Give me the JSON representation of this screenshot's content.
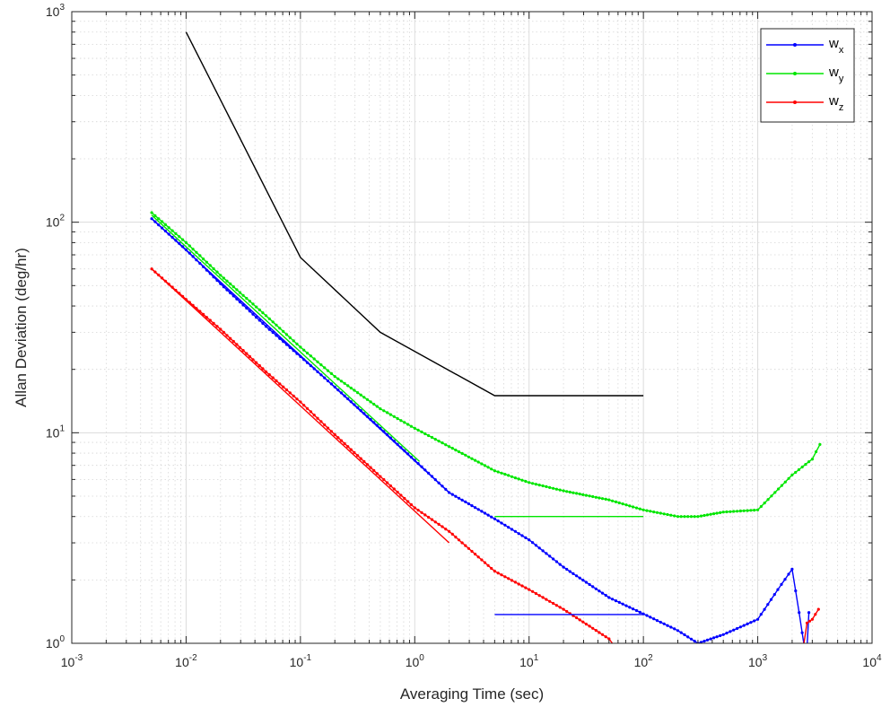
{
  "chart_data": {
    "type": "line",
    "title": "",
    "xlabel": "Averaging Time (sec)",
    "ylabel": "Allan Deviation (deg/hr)",
    "xscale": "log",
    "yscale": "log",
    "xlim": [
      0.001,
      10000
    ],
    "ylim": [
      1,
      1000
    ],
    "grid": "major and minor",
    "legend_position": "top-right",
    "x_ticks": [
      {
        "base": "10",
        "exp": "-3",
        "value": 0.001
      },
      {
        "base": "10",
        "exp": "-2",
        "value": 0.01
      },
      {
        "base": "10",
        "exp": "-1",
        "value": 0.1
      },
      {
        "base": "10",
        "exp": "0",
        "value": 1
      },
      {
        "base": "10",
        "exp": "1",
        "value": 10
      },
      {
        "base": "10",
        "exp": "2",
        "value": 100
      },
      {
        "base": "10",
        "exp": "3",
        "value": 1000
      },
      {
        "base": "10",
        "exp": "4",
        "value": 10000
      }
    ],
    "y_ticks": [
      {
        "base": "10",
        "exp": "0",
        "value": 1
      },
      {
        "base": "10",
        "exp": "1",
        "value": 10
      },
      {
        "base": "10",
        "exp": "2",
        "value": 100
      },
      {
        "base": "10",
        "exp": "3",
        "value": 1000
      }
    ],
    "series": [
      {
        "name_base": "w",
        "name_sub": "x",
        "color": "#0000ff",
        "marker": "dot",
        "in_legend": true,
        "points": [
          [
            0.005,
            104
          ],
          [
            0.01,
            74
          ],
          [
            0.02,
            51
          ],
          [
            0.05,
            32
          ],
          [
            0.1,
            23
          ],
          [
            0.2,
            16.5
          ],
          [
            0.5,
            10.5
          ],
          [
            1,
            7.4
          ],
          [
            2,
            5.2
          ],
          [
            5,
            3.9
          ],
          [
            10,
            3.1
          ],
          [
            20,
            2.3
          ],
          [
            50,
            1.65
          ],
          [
            100,
            1.38
          ],
          [
            200,
            1.15
          ],
          [
            300,
            1.0
          ],
          [
            500,
            1.1
          ],
          [
            1000,
            1.3
          ],
          [
            1500,
            1.8
          ],
          [
            2000,
            2.25
          ],
          [
            2300,
            1.4
          ],
          [
            2600,
            0.9
          ]
        ]
      },
      {
        "name_base": "w",
        "name_sub": "y",
        "color": "#00e600",
        "marker": "dot",
        "in_legend": true,
        "points": [
          [
            0.005,
            111
          ],
          [
            0.01,
            80
          ],
          [
            0.02,
            56
          ],
          [
            0.05,
            36
          ],
          [
            0.1,
            25.5
          ],
          [
            0.2,
            18.5
          ],
          [
            0.5,
            13
          ],
          [
            1,
            10.5
          ],
          [
            2,
            8.6
          ],
          [
            5,
            6.6
          ],
          [
            10,
            5.8
          ],
          [
            20,
            5.3
          ],
          [
            50,
            4.8
          ],
          [
            100,
            4.3
          ],
          [
            200,
            4.0
          ],
          [
            300,
            4.0
          ],
          [
            500,
            4.2
          ],
          [
            1000,
            4.3
          ],
          [
            2000,
            6.3
          ],
          [
            3000,
            7.5
          ],
          [
            3500,
            8.8
          ]
        ]
      },
      {
        "name_base": "w",
        "name_sub": "z",
        "color": "#ff0000",
        "marker": "dot",
        "in_legend": true,
        "points": [
          [
            0.005,
            60
          ],
          [
            0.01,
            43
          ],
          [
            0.02,
            31
          ],
          [
            0.05,
            19.5
          ],
          [
            0.1,
            14
          ],
          [
            0.2,
            9.8
          ],
          [
            0.5,
            6.2
          ],
          [
            1,
            4.4
          ],
          [
            2,
            3.4
          ],
          [
            5,
            2.2
          ],
          [
            10,
            1.8
          ],
          [
            20,
            1.45
          ],
          [
            50,
            1.05
          ],
          [
            55,
            0.98
          ]
        ]
      },
      {
        "name_base": "",
        "name_sub": "",
        "color": "#000000",
        "marker": "none",
        "in_legend": false,
        "points": [
          [
            0.01,
            800
          ],
          [
            0.1,
            68
          ],
          [
            0.5,
            30
          ],
          [
            5,
            15
          ],
          [
            100,
            15
          ]
        ]
      },
      {
        "name_base": "",
        "name_sub": "",
        "color": "#0000ff",
        "marker": "none",
        "in_legend": false,
        "points": [
          [
            0.005,
            104
          ],
          [
            2,
            5.2
          ]
        ]
      },
      {
        "name_base": "",
        "name_sub": "",
        "color": "#00e600",
        "marker": "none",
        "in_legend": false,
        "points": [
          [
            0.005,
            108
          ],
          [
            1.1,
            7.3
          ]
        ]
      },
      {
        "name_base": "",
        "name_sub": "",
        "color": "#ff0000",
        "marker": "none",
        "in_legend": false,
        "points": [
          [
            0.005,
            60
          ],
          [
            2,
            3.0
          ]
        ]
      },
      {
        "name_base": "",
        "name_sub": "",
        "color": "#0000ff",
        "marker": "none",
        "in_legend": false,
        "points": [
          [
            5,
            1.37
          ],
          [
            100,
            1.37
          ]
        ]
      },
      {
        "name_base": "",
        "name_sub": "",
        "color": "#00e600",
        "marker": "none",
        "in_legend": false,
        "points": [
          [
            5,
            4.0
          ],
          [
            100,
            4.0
          ]
        ]
      },
      {
        "name_base": "",
        "name_sub": "",
        "color": "#0000ff",
        "marker": "dot",
        "in_legend": false,
        "points": [
          [
            2700,
            0.95
          ],
          [
            2800,
            1.4
          ]
        ]
      },
      {
        "name_base": "",
        "name_sub": "",
        "color": "#ff0000",
        "marker": "dot",
        "in_legend": false,
        "points": [
          [
            2500,
            0.95
          ],
          [
            2700,
            1.25
          ],
          [
            3000,
            1.3
          ],
          [
            3400,
            1.45
          ]
        ]
      }
    ]
  }
}
